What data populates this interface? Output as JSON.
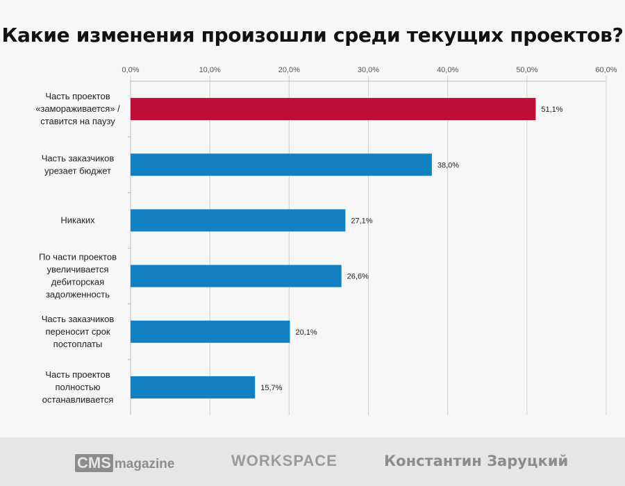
{
  "chart_data": {
    "type": "bar",
    "orientation": "horizontal",
    "title": "Какие изменения произошли среди текущих проектов?",
    "xlim": [
      0,
      60
    ],
    "x_ticks": [
      "0,0%",
      "10,0%",
      "20,0%",
      "30,0%",
      "40,0%",
      "50,0%",
      "60,0%"
    ],
    "x_tick_values": [
      0,
      10,
      20,
      30,
      40,
      50,
      60
    ],
    "axis_position": "top",
    "grid": true,
    "categories": [
      [
        "Часть проектов",
        "«замораживается» /",
        "ставится на паузу"
      ],
      [
        "Часть заказчиков",
        "урезает бюджет"
      ],
      [
        "Никаких"
      ],
      [
        "По части проектов",
        "увеличивается",
        "дебиторская",
        "задолженность"
      ],
      [
        "Часть заказчиков",
        "переносит срок",
        "постоплаты"
      ],
      [
        "Часть проектов",
        "полностью",
        "останавливается"
      ]
    ],
    "values": [
      51.1,
      38.0,
      27.1,
      26.6,
      20.1,
      15.7
    ],
    "value_labels": [
      "51,1%",
      "38,0%",
      "27,1%",
      "26,6%",
      "20,1%",
      "15,7%"
    ],
    "colors": [
      "#c00d37",
      "#1380c2",
      "#1380c2",
      "#1380c2",
      "#1380c2",
      "#1380c2"
    ],
    "gridline_color": "#d0d0d0"
  },
  "footer": {
    "cms_logo": "CMS",
    "cms_logo_suffix": "magazine",
    "workspace_logo": "WORKSPACE",
    "author": "Константин Заруцкий"
  }
}
